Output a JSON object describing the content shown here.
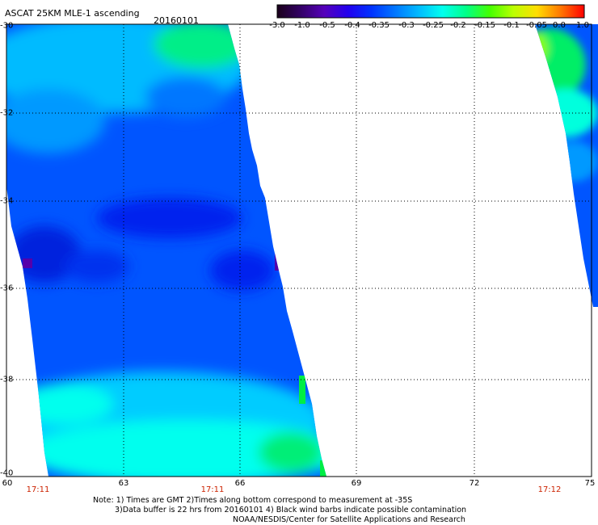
{
  "header": {
    "title": "ASCAT 25KM MLE-1 ascending",
    "date": "20160101"
  },
  "colorbar": {
    "labels": [
      "-3.0",
      "-1.0",
      "-0.5",
      "-0.4",
      "-0.35",
      "-0.3",
      "-0.25",
      "-0.2",
      "-0.15",
      "-0.1",
      "-0.05",
      "0.0",
      "1.0"
    ],
    "colors": [
      "#1a001a",
      "#330066",
      "#5500bb",
      "#2200ee",
      "#0033ff",
      "#0077ff",
      "#00bbff",
      "#00ffee",
      "#00ff88",
      "#44ff00",
      "#bbff00",
      "#ffdd00",
      "#ff7700",
      "#ff0000"
    ]
  },
  "map": {
    "lat_labels": [
      "-30",
      "-32",
      "-34",
      "-36",
      "-38",
      "-40"
    ],
    "lon_labels": [
      "60",
      "63",
      "66",
      "69",
      "72",
      "75"
    ],
    "time_labels": [
      "17:11",
      "17:11",
      "17:12"
    ],
    "colors": {
      "cyan": "#00ffee",
      "light_blue": "#00aaff",
      "blue": "#0055ff",
      "deep_blue": "#0022ee",
      "violet": "#4400cc",
      "green": "#00ee66",
      "yellow_green": "#aaff00",
      "orange": "#ff8800"
    }
  },
  "notes": {
    "line1": "Note: 1) Times are GMT 2)Times along bottom correspond to measurement at -35S",
    "line2": "3)Data buffer is 22 hrs from 20160101 4) Black wind barbs indicate possible contamination",
    "line3": "NOAA/NESDIS/Center for Satellite Applications and Research"
  }
}
